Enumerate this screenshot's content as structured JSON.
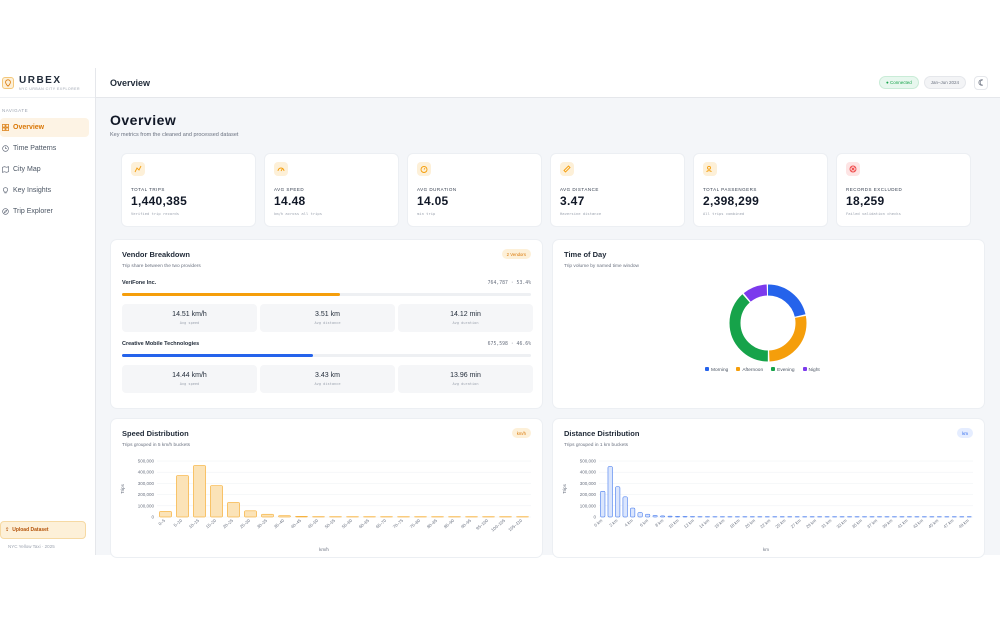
{
  "brand": {
    "name": "URBEX",
    "subtitle": "NYC URBAN CITY EXPLORER"
  },
  "sidebar": {
    "section_label": "NAVIGATE",
    "items": [
      {
        "label": "Overview",
        "icon": "grid-icon",
        "active": true
      },
      {
        "label": "Time Patterns",
        "icon": "clock-icon",
        "active": false
      },
      {
        "label": "City Map",
        "icon": "map-icon",
        "active": false
      },
      {
        "label": "Key Insights",
        "icon": "lightbulb-icon",
        "active": false
      },
      {
        "label": "Trip Explorer",
        "icon": "compass-icon",
        "active": false
      }
    ],
    "upload_label": "Upload Dataset",
    "footer": "NYC Yellow Taxi · 2025"
  },
  "topbar": {
    "title": "Overview",
    "status": "● Connected",
    "date_range": "Jan–Jun 2024"
  },
  "page": {
    "title": "Overview",
    "subtitle": "Key metrics from the cleaned and processed dataset"
  },
  "kpis": [
    {
      "label": "TOTAL TRIPS",
      "value": "1,440,385",
      "sub": "Verified trip records",
      "color": "#f59e0b",
      "bg": "#fdf0d8",
      "icon": "route-icon"
    },
    {
      "label": "AVG SPEED",
      "value": "14.48",
      "sub": "km/h across all trips",
      "color": "#f59e0b",
      "bg": "#fdf0d8",
      "icon": "speedometer-icon"
    },
    {
      "label": "AVG DURATION",
      "value": "14.05",
      "sub": "min trip",
      "color": "#f59e0b",
      "bg": "#fdf0d8",
      "icon": "timer-icon"
    },
    {
      "label": "AVG DISTANCE",
      "value": "3.47",
      "sub": "Haversine distance",
      "color": "#f59e0b",
      "bg": "#fdf0d8",
      "icon": "ruler-icon"
    },
    {
      "label": "TOTAL PASSENGERS",
      "value": "2,398,299",
      "sub": "All trips combined",
      "color": "#f59e0b",
      "bg": "#fdf0d8",
      "icon": "users-icon"
    },
    {
      "label": "RECORDS EXCLUDED",
      "value": "18,259",
      "sub": "Failed validation checks",
      "color": "#ef4444",
      "bg": "#fde4e4",
      "icon": "alert-icon"
    }
  ],
  "vendor": {
    "title": "Vendor Breakdown",
    "subtitle": "Trip share between the two providers",
    "badge": "2 Vendors",
    "vendors": [
      {
        "name": "VeriFone Inc.",
        "count": "764,787 · 53.4%",
        "share": 0.534,
        "color": "#f59e0b",
        "stats": [
          {
            "value": "14.51 km/h",
            "label": "Avg speed"
          },
          {
            "value": "3.51 km",
            "label": "Avg distance"
          },
          {
            "value": "14.12 min",
            "label": "Avg duration"
          }
        ]
      },
      {
        "name": "Creative Mobile Technologies",
        "count": "675,598 · 46.6%",
        "share": 0.466,
        "color": "#2563eb",
        "stats": [
          {
            "value": "14.44 km/h",
            "label": "Avg speed"
          },
          {
            "value": "3.43 km",
            "label": "Avg distance"
          },
          {
            "value": "13.96 min",
            "label": "Avg duration"
          }
        ]
      }
    ]
  },
  "timeofday": {
    "title": "Time of Day",
    "subtitle": "Trip volume by named time window",
    "chart_data": {
      "type": "pie",
      "labels": [
        "Morning",
        "Afternoon",
        "Evening",
        "Night"
      ],
      "values": [
        22,
        28,
        39,
        11
      ],
      "colors": [
        "#2563eb",
        "#f59e0b",
        "#16a34a",
        "#7c3aed"
      ]
    }
  },
  "speed": {
    "title": "Speed Distribution",
    "subtitle": "Trips grouped in 5 km/h buckets",
    "badge": "km/h",
    "chart_data": {
      "type": "bar",
      "categories": [
        "0–5",
        "5–10",
        "10–15",
        "15–20",
        "20–25",
        "25–30",
        "30–35",
        "35–40",
        "40–45",
        "45–50",
        "50–55",
        "55–60",
        "60–65",
        "65–70",
        "70–75",
        "75–80",
        "80–85",
        "85–90",
        "90–95",
        "95–100",
        "100–105",
        "105–110"
      ],
      "values": [
        50000,
        370000,
        460000,
        280000,
        130000,
        55000,
        25000,
        12000,
        6000,
        3000,
        1500,
        800,
        400,
        200,
        100,
        50,
        30,
        20,
        10,
        10,
        5,
        5
      ],
      "xlabel": "km/h",
      "ylabel": "Trips",
      "yticks": [
        "0",
        "100,000",
        "200,000",
        "300,000",
        "400,000",
        "500,000"
      ],
      "ylim": [
        0,
        500000
      ],
      "color": "#f59e0b"
    }
  },
  "distance": {
    "title": "Distance Distribution",
    "subtitle": "Trips grouped in 1 km buckets",
    "badge": "km",
    "chart_data": {
      "type": "bar",
      "categories": [
        "0 km",
        "1 km",
        "2 km",
        "3 km",
        "4 km",
        "5 km",
        "6 km",
        "7 km",
        "8 km",
        "9 km",
        "10 km",
        "11 km",
        "12 km",
        "13 km",
        "14 km",
        "15 km",
        "16 km",
        "17 km",
        "18 km",
        "19 km",
        "20 km",
        "21 km",
        "22 km",
        "23 km",
        "24 km",
        "25 km",
        "26 km",
        "27 km",
        "28 km",
        "29 km",
        "30 km",
        "31 km",
        "32 km",
        "33 km",
        "34 km",
        "35 km",
        "36 km",
        "37 km",
        "38 km",
        "39 km",
        "40 km",
        "41 km",
        "42 km",
        "43 km",
        "44 km",
        "45 km",
        "46 km",
        "47 km",
        "48 km",
        "49 km"
      ],
      "tick_labels": [
        "0 km",
        "2 km",
        "4 km",
        "6 km",
        "8 km",
        "10 km",
        "12 km",
        "14 km",
        "16 km",
        "18 km",
        "20 km",
        "22 km",
        "25 km",
        "27 km",
        "29 km",
        "31 km",
        "33 km",
        "35 km",
        "37 km",
        "39 km",
        "41 km",
        "43 km",
        "45 km",
        "47 km",
        "49 km"
      ],
      "values": [
        230000,
        450000,
        270000,
        180000,
        80000,
        40000,
        25000,
        15000,
        10000,
        8000,
        6000,
        5000,
        4000,
        3000,
        3000,
        2500,
        2000,
        1500,
        1500,
        1000,
        1000,
        800,
        800,
        600,
        600,
        500,
        500,
        400,
        400,
        300,
        300,
        300,
        200,
        200,
        200,
        200,
        150,
        150,
        150,
        100,
        100,
        100,
        100,
        80,
        80,
        60,
        60,
        50,
        50,
        40
      ],
      "xlabel": "km",
      "ylabel": "Trips",
      "yticks": [
        "0",
        "100,000",
        "200,000",
        "300,000",
        "400,000",
        "500,000"
      ],
      "ylim": [
        0,
        500000
      ],
      "color": "#2563eb"
    }
  }
}
